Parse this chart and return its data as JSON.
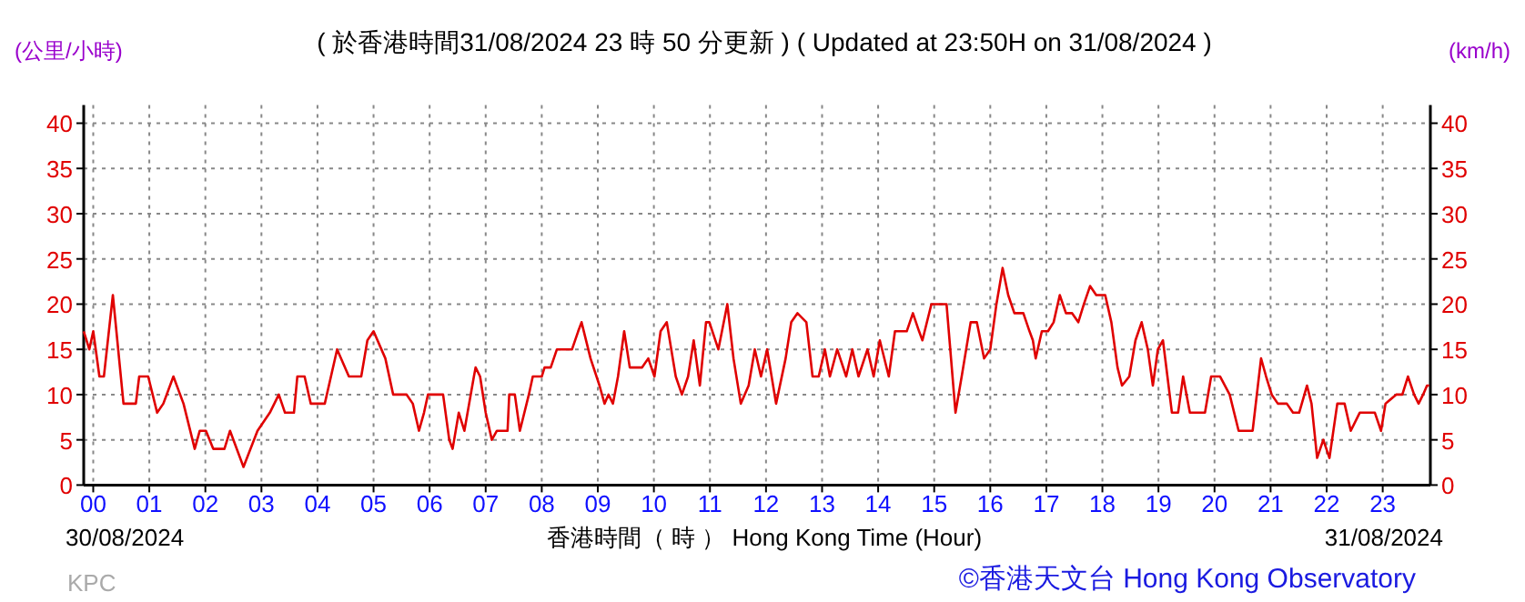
{
  "chart_data": {
    "type": "line",
    "title": "( 於香港時間31/08/2024 23 時 50 分更新 ) ( Updated at 23:50H on 31/08/2024 )",
    "xlabel": "香港時間（ 時 ） Hong Kong Time (Hour)",
    "ylabel": "(公里/小時)",
    "y2label": "(km/h)",
    "annotations": [
      "30/08/2024",
      "31/08/2024",
      "KPC",
      "©香港天文台 Hong Kong Observatory"
    ],
    "xlim": [
      -0.17,
      23.85
    ],
    "ylim": [
      0,
      42
    ],
    "y2lim": [
      0,
      42
    ],
    "xticks": [
      {
        "value": 0,
        "label": "00"
      },
      {
        "value": 1,
        "label": "01"
      },
      {
        "value": 2,
        "label": "02"
      },
      {
        "value": 3,
        "label": "03"
      },
      {
        "value": 4,
        "label": "04"
      },
      {
        "value": 5,
        "label": "05"
      },
      {
        "value": 6,
        "label": "06"
      },
      {
        "value": 7,
        "label": "07"
      },
      {
        "value": 8,
        "label": "08"
      },
      {
        "value": 9,
        "label": "09"
      },
      {
        "value": 10,
        "label": "10"
      },
      {
        "value": 11,
        "label": "11"
      },
      {
        "value": 12,
        "label": "12"
      },
      {
        "value": 13,
        "label": "13"
      },
      {
        "value": 14,
        "label": "14"
      },
      {
        "value": 15,
        "label": "15"
      },
      {
        "value": 16,
        "label": "16"
      },
      {
        "value": 17,
        "label": "17"
      },
      {
        "value": 18,
        "label": "18"
      },
      {
        "value": 19,
        "label": "19"
      },
      {
        "value": 20,
        "label": "20"
      },
      {
        "value": 21,
        "label": "21"
      },
      {
        "value": 22,
        "label": "22"
      },
      {
        "value": 23,
        "label": "23"
      }
    ],
    "yticks": [
      0,
      5,
      10,
      15,
      20,
      25,
      30,
      35,
      40
    ],
    "y2ticks": [
      0,
      5,
      10,
      15,
      20,
      25,
      30,
      35,
      40
    ],
    "grid": true,
    "series": [
      {
        "color": "#e00000",
        "x": [
          -0.17,
          -0.07,
          0.0,
          0.11,
          0.19,
          0.35,
          0.54,
          0.76,
          0.82,
          0.98,
          1.14,
          1.25,
          1.43,
          1.61,
          1.77,
          1.81,
          1.9,
          2.01,
          2.14,
          2.34,
          2.44,
          2.68,
          2.93,
          3.15,
          3.31,
          3.42,
          3.58,
          3.64,
          3.77,
          3.88,
          4.13,
          4.35,
          4.56,
          4.78,
          4.89,
          5.0,
          5.21,
          5.35,
          5.59,
          5.7,
          5.81,
          5.9,
          5.97,
          6.24,
          6.35,
          6.41,
          6.52,
          6.62,
          6.79,
          6.82,
          6.9,
          7.0,
          7.11,
          7.2,
          7.39,
          7.42,
          7.52,
          7.61,
          7.77,
          7.84,
          8.0,
          8.05,
          8.16,
          8.27,
          8.43,
          8.54,
          8.65,
          8.71,
          8.87,
          9.03,
          9.12,
          9.19,
          9.27,
          9.36,
          9.47,
          9.57,
          9.68,
          9.79,
          9.9,
          10.01,
          10.12,
          10.23,
          10.39,
          10.5,
          10.61,
          10.71,
          10.82,
          10.93,
          10.99,
          11.15,
          11.31,
          11.42,
          11.55,
          11.69,
          11.8,
          11.91,
          12.02,
          12.18,
          12.35,
          12.45,
          12.56,
          12.72,
          12.83,
          12.94,
          13.05,
          13.14,
          13.27,
          13.43,
          13.54,
          13.65,
          13.81,
          13.92,
          14.03,
          14.19,
          14.3,
          14.51,
          14.62,
          14.73,
          14.79,
          14.95,
          15.22,
          15.38,
          15.49,
          15.65,
          15.76,
          15.89,
          16.0,
          16.11,
          16.22,
          16.32,
          16.43,
          16.59,
          16.7,
          16.76,
          16.81,
          16.92,
          17.03,
          17.13,
          17.24,
          17.35,
          17.46,
          17.57,
          17.67,
          17.78,
          17.89,
          18.05,
          18.16,
          18.27,
          18.35,
          18.48,
          18.59,
          18.7,
          18.81,
          18.9,
          18.99,
          19.08,
          19.24,
          19.35,
          19.44,
          19.56,
          19.67,
          19.83,
          19.94,
          20.1,
          20.27,
          20.43,
          20.59,
          20.68,
          20.83,
          20.92,
          21.02,
          21.13,
          21.29,
          21.4,
          21.51,
          21.65,
          21.73,
          21.83,
          21.94,
          22.05,
          22.19,
          22.32,
          22.43,
          22.59,
          22.86,
          22.97,
          23.05,
          23.24,
          23.35,
          23.45,
          23.56,
          23.64,
          23.72,
          23.79,
          23.83
        ],
        "values": [
          17,
          15,
          17,
          12,
          12,
          21,
          9,
          9,
          12,
          12,
          8,
          9,
          12,
          9,
          5,
          4,
          6,
          6,
          4,
          4,
          6,
          2,
          6,
          8,
          10,
          8,
          8,
          12,
          12,
          9,
          9,
          15,
          12,
          12,
          16,
          17,
          14,
          10,
          10,
          9,
          6,
          8,
          10,
          10,
          5,
          4,
          8,
          6,
          12,
          13,
          12,
          8,
          5,
          6,
          6,
          10,
          10,
          6,
          10,
          12,
          12,
          13,
          13,
          15,
          15,
          15,
          17,
          18,
          14,
          11,
          9,
          10,
          9,
          12,
          17,
          13,
          13,
          13,
          14,
          12,
          17,
          18,
          12,
          10,
          12,
          16,
          11,
          18,
          18,
          15,
          20,
          14,
          9,
          11,
          15,
          12,
          15,
          9,
          14,
          18,
          19,
          18,
          12,
          12,
          15,
          12,
          15,
          12,
          15,
          12,
          15,
          12,
          16,
          12,
          17,
          17,
          19,
          17,
          16,
          20,
          20,
          8,
          12,
          18,
          18,
          14,
          15,
          20,
          24,
          21,
          19,
          19,
          17,
          16,
          14,
          17,
          17,
          18,
          21,
          19,
          19,
          18,
          20,
          22,
          21,
          21,
          18,
          13,
          11,
          12,
          16,
          18,
          15,
          11,
          15,
          16,
          8,
          8,
          12,
          8,
          8,
          8,
          12,
          12,
          10,
          6,
          6,
          6,
          14,
          12,
          10,
          9,
          9,
          8,
          8,
          11,
          9,
          3,
          5,
          3,
          9,
          9,
          6,
          8,
          8,
          6,
          9,
          10,
          10,
          12,
          10,
          9,
          10,
          11,
          11
        ]
      }
    ]
  }
}
